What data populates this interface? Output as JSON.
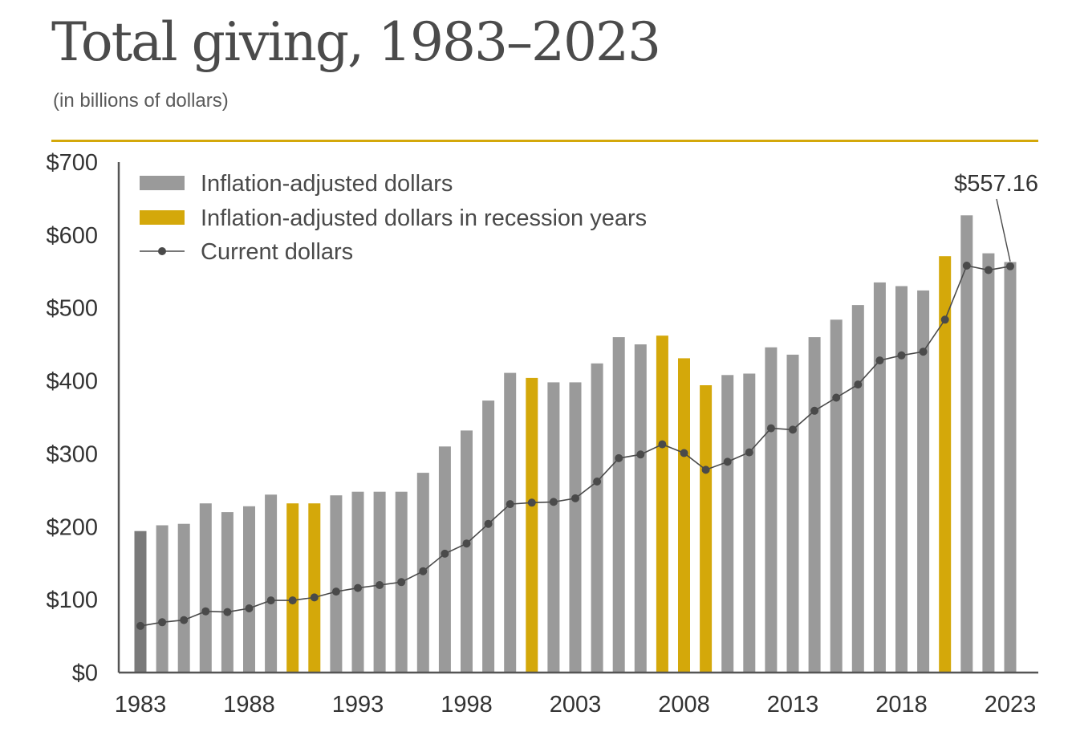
{
  "header": {
    "title": "Total giving, 1983–2023",
    "subtitle": "(in billions of dollars)"
  },
  "colors": {
    "bar": "#9a9a9a",
    "bar_first": "#7a7a7a",
    "recession": "#d4a80a",
    "line": "#4a4a4a",
    "axis": "#555555",
    "rule": "#d4a80a"
  },
  "chart_data": {
    "type": "bar",
    "ylim": [
      0,
      700
    ],
    "y_ticks": [
      {
        "value": 0,
        "label": "$0"
      },
      {
        "value": 100,
        "label": "$100"
      },
      {
        "value": 200,
        "label": "$200"
      },
      {
        "value": 300,
        "label": "$300"
      },
      {
        "value": 400,
        "label": "$400"
      },
      {
        "value": 500,
        "label": "$500"
      },
      {
        "value": 600,
        "label": "$600"
      },
      {
        "value": 700,
        "label": "$700"
      }
    ],
    "x_ticks": [
      "1983",
      "1988",
      "1993",
      "1998",
      "2003",
      "2008",
      "2013",
      "2018",
      "2023"
    ],
    "x": [
      1983,
      1984,
      1985,
      1986,
      1987,
      1988,
      1989,
      1990,
      1991,
      1992,
      1993,
      1994,
      1995,
      1996,
      1997,
      1998,
      1999,
      2000,
      2001,
      2002,
      2003,
      2004,
      2005,
      2006,
      2007,
      2008,
      2009,
      2010,
      2011,
      2012,
      2013,
      2014,
      2015,
      2016,
      2017,
      2018,
      2019,
      2020,
      2021,
      2022,
      2023
    ],
    "recession_years": [
      1990,
      1991,
      2001,
      2007,
      2008,
      2009,
      2020
    ],
    "legend": {
      "position": "top-left",
      "items": [
        {
          "label": "Inflation-adjusted dollars",
          "kind": "bar"
        },
        {
          "label": "Inflation-adjusted dollars in recession years",
          "kind": "recession"
        },
        {
          "label": "Current dollars",
          "kind": "line"
        }
      ]
    },
    "series": [
      {
        "name": "Inflation-adjusted dollars",
        "type": "bar",
        "values": [
          194,
          202,
          204,
          232,
          220,
          228,
          244,
          232,
          232,
          243,
          248,
          248,
          248,
          274,
          310,
          332,
          373,
          411,
          404,
          398,
          398,
          424,
          460,
          450,
          462,
          431,
          394,
          408,
          410,
          446,
          436,
          460,
          484,
          504,
          535,
          530,
          524,
          571,
          627,
          575,
          563
        ]
      },
      {
        "name": "Current dollars",
        "type": "line",
        "values": [
          64,
          69,
          72,
          84,
          83,
          88,
          99,
          99,
          103,
          111,
          116,
          120,
          124,
          139,
          163,
          177,
          204,
          231,
          233,
          234,
          239,
          262,
          294,
          299,
          313,
          301,
          278,
          289,
          302,
          335,
          333,
          359,
          377,
          395,
          428,
          435,
          440,
          484,
          558,
          552,
          557.16
        ]
      }
    ],
    "annotation": {
      "label": "$557.16",
      "year": 2023
    }
  }
}
